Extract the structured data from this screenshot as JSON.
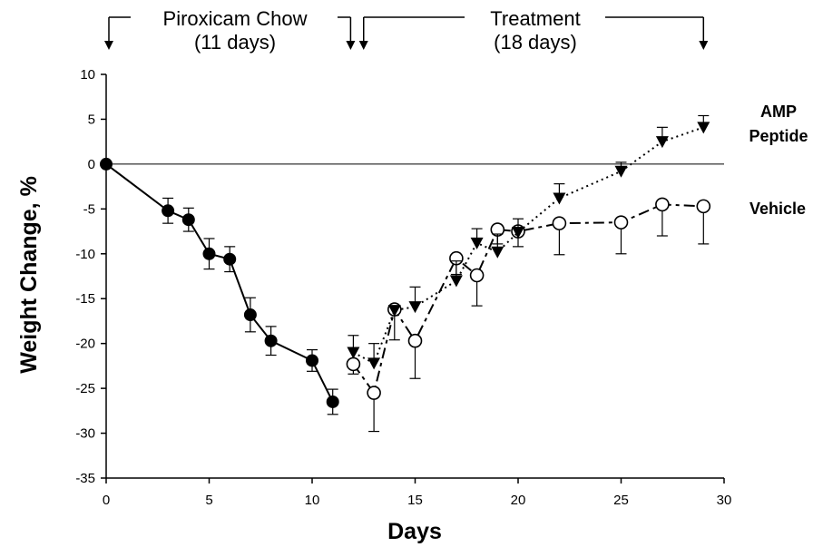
{
  "chart_data": {
    "type": "line",
    "xlabel": "Days",
    "ylabel": "Weight Change, %",
    "xlim": [
      0,
      30
    ],
    "ylim": [
      -35,
      10
    ],
    "x_ticks": [
      "0",
      "5",
      "10",
      "15",
      "20",
      "25",
      "30"
    ],
    "y_ticks": [
      "10",
      "5",
      "0",
      "-5",
      "-10",
      "-15",
      "-20",
      "-25",
      "-30",
      "-35"
    ],
    "grid": false,
    "reference_line_y": 0,
    "phases": [
      {
        "line1": "Piroxicam Chow",
        "line2": "(11 days)",
        "start_day": 0,
        "end_day": 12
      },
      {
        "line1": "Treatment",
        "line2": "(18 days)",
        "start_day": 12.5,
        "end_day": 29
      }
    ],
    "series": [
      {
        "marker": "filled-circle",
        "line": "solid",
        "x": [
          0,
          3,
          4,
          5,
          6,
          7,
          8,
          10,
          11
        ],
        "y": [
          0,
          -5.2,
          -6.2,
          -10.0,
          -10.6,
          -16.8,
          -19.7,
          -21.9,
          -26.5
        ],
        "error": [
          0,
          1.4,
          1.3,
          1.7,
          1.4,
          1.9,
          1.6,
          1.2,
          1.4
        ]
      },
      {
        "name": "Vehicle",
        "marker": "open-circle",
        "line": "dashed",
        "x": [
          12,
          13,
          14,
          15,
          17,
          18,
          19,
          20,
          22,
          25,
          27,
          29
        ],
        "y": [
          -22.3,
          -25.5,
          -16.2,
          -19.7,
          -10.5,
          -12.4,
          -7.3,
          -7.5,
          -6.6,
          -6.5,
          -4.5,
          -4.7
        ],
        "error": [
          1.1,
          4.3,
          3.4,
          4.2,
          1.8,
          3.4,
          1.6,
          1.7,
          3.5,
          3.5,
          3.5,
          4.2
        ]
      },
      {
        "name": "AMP Peptide",
        "marker": "triangle-down",
        "line": "dotted",
        "x": [
          12,
          13,
          14,
          15,
          17,
          18,
          19,
          20,
          22,
          25,
          27,
          29
        ],
        "y": [
          -21.0,
          -22.2,
          -16.3,
          -15.9,
          -13.0,
          -8.8,
          -9.8,
          -7.6,
          -3.8,
          -0.8,
          2.5,
          4.1
        ],
        "error": [
          1.9,
          2.2,
          0.4,
          2.2,
          2.2,
          1.6,
          2.0,
          1.5,
          1.6,
          1.0,
          1.6,
          1.3
        ]
      }
    ],
    "series_labels": [
      {
        "series_index": 2,
        "line1": "AMP",
        "line2": "Peptide"
      },
      {
        "series_index": 1,
        "line1": "Vehicle",
        "line2": ""
      }
    ]
  }
}
